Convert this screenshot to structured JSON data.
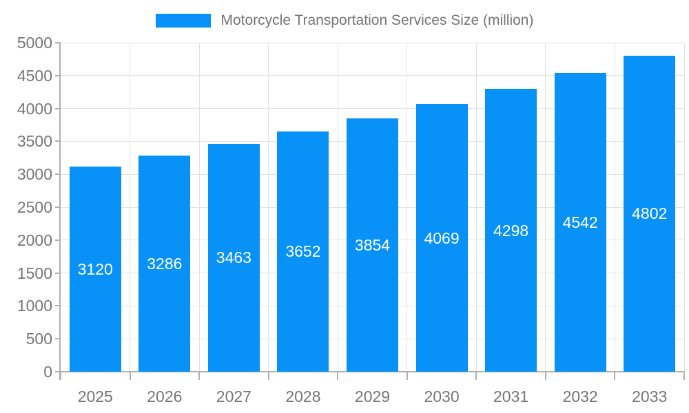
{
  "legend": {
    "label": "Motorcycle Transportation Services Size (million)"
  },
  "chart_data": {
    "type": "bar",
    "title": "Motorcycle Transportation Services Size (million)",
    "series_name": "Motorcycle Transportation Services Size (million)",
    "categories": [
      "2025",
      "2026",
      "2027",
      "2028",
      "2029",
      "2030",
      "2031",
      "2032",
      "2033"
    ],
    "values": [
      3120,
      3286,
      3463,
      3652,
      3854,
      4069,
      4298,
      4542,
      4802
    ],
    "xlabel": "",
    "ylabel": "",
    "ylim": [
      0,
      5000
    ],
    "y_ticks": [
      0,
      500,
      1000,
      1500,
      2000,
      2500,
      3000,
      3500,
      4000,
      4500,
      5000
    ],
    "grid": true,
    "legend_position": "top",
    "bar_color": "#0892f8",
    "bar_label_color": "#ffffff",
    "axis_text_color": "#757575",
    "grid_color": "#e2e2e2",
    "axis_line_color": "#b0b0b0"
  }
}
